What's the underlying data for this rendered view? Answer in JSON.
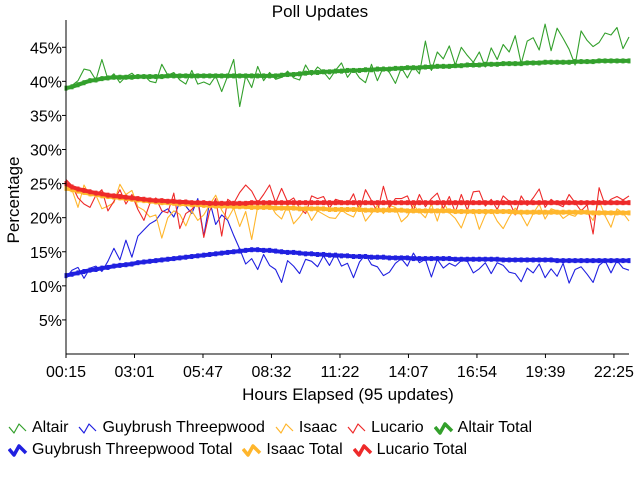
{
  "chart_data": {
    "type": "line",
    "title": "Poll Updates",
    "xlabel": "Hours Elapsed (95 updates)",
    "ylabel": "Percentage",
    "x_tick_labels": [
      "00:15",
      "03:01",
      "05:47",
      "08:32",
      "11:22",
      "14:07",
      "16:54",
      "19:39",
      "22:25"
    ],
    "y_ticks": [
      5,
      10,
      15,
      20,
      25,
      30,
      35,
      40,
      45
    ],
    "y_tick_labels": [
      "5%",
      "10%",
      "15%",
      "20%",
      "25%",
      "30%",
      "35%",
      "40%",
      "45%"
    ],
    "ylim": [
      0,
      49
    ],
    "grid": false,
    "legend_position": "bottom",
    "series": [
      {
        "name": "Altair",
        "color": "#33a02c",
        "style": "thin",
        "values": [
          39.0,
          39.4,
          40.1,
          41.8,
          41.6,
          40.2,
          43.2,
          40.3,
          41.1,
          39.8,
          40.7,
          41.2,
          40.4,
          40.9,
          40.0,
          39.8,
          42.5,
          40.9,
          41.3,
          40.2,
          39.6,
          41.6,
          39.6,
          39.9,
          39.5,
          40.8,
          38.5,
          40.8,
          43.2,
          36.3,
          40.8,
          39.1,
          42.2,
          40.1,
          41.3,
          40.3,
          40.6,
          41.5,
          40.5,
          40.2,
          42.4,
          40.9,
          42.1,
          41.4,
          40.3,
          41.6,
          42.7,
          40.6,
          41.8,
          40.5,
          39.8,
          42.5,
          40.1,
          42.1,
          41.3,
          39.7,
          42.0,
          40.5,
          42.2,
          41.1,
          45.9,
          41.6,
          44.3,
          43.3,
          45.2,
          42.4,
          45.0,
          43.8,
          42.8,
          44.3,
          42.1,
          44.9,
          43.2,
          45.4,
          44.3,
          46.7,
          42.6,
          45.9,
          46.4,
          44.6,
          48.4,
          44.5,
          47.8,
          46.3,
          44.7,
          42.4,
          47.4,
          46.0,
          45.1,
          45.7,
          47.1,
          46.8,
          47.9,
          44.8,
          46.5
        ]
      },
      {
        "name": "Guybrush Threepwood",
        "color": "#2020e0",
        "style": "thin",
        "values": [
          11.2,
          12.3,
          12.7,
          11.1,
          12.6,
          12.9,
          12.1,
          13.6,
          15.5,
          13.8,
          16.7,
          14.2,
          17.3,
          18.2,
          19.1,
          19.6,
          20.8,
          21.3,
          20.1,
          22.3,
          21.7,
          20.6,
          22.8,
          17.3,
          22.4,
          19.0,
          20.4,
          19.6,
          17.4,
          15.4,
          13.2,
          14.0,
          12.4,
          14.6,
          13.0,
          12.4,
          10.5,
          13.7,
          12.9,
          11.8,
          13.9,
          13.6,
          12.8,
          14.4,
          13.0,
          14.7,
          12.9,
          13.3,
          11.2,
          13.5,
          14.6,
          13.1,
          12.8,
          11.5,
          12.0,
          13.3,
          14.0,
          12.9,
          14.8,
          13.4,
          13.9,
          11.3,
          13.9,
          12.6,
          13.3,
          12.9,
          13.7,
          13.6,
          11.9,
          12.5,
          13.4,
          11.8,
          13.4,
          13.0,
          12.0,
          11.8,
          10.6,
          12.6,
          11.9,
          13.2,
          11.2,
          12.5,
          11.4,
          13.3,
          10.4,
          12.4,
          12.8,
          11.7,
          10.5,
          13.0,
          13.7,
          11.9,
          13.7,
          12.6,
          12.3
        ]
      },
      {
        "name": "Isaac",
        "color": "#ffb62c",
        "style": "thin",
        "values": [
          24.9,
          24.1,
          21.5,
          24.8,
          23.2,
          23.3,
          21.3,
          21.7,
          22.2,
          24.9,
          23.4,
          24.0,
          21.6,
          21.1,
          20.1,
          20.4,
          17.0,
          20.0,
          21.0,
          20.5,
          18.8,
          21.0,
          19.6,
          20.4,
          21.9,
          23.3,
          21.1,
          19.8,
          21.4,
          18.7,
          20.9,
          16.8,
          21.6,
          21.5,
          22.0,
          20.6,
          19.8,
          21.8,
          19.1,
          20.1,
          21.4,
          19.6,
          21.0,
          20.5,
          20.0,
          19.9,
          21.1,
          20.5,
          20.1,
          21.9,
          19.5,
          20.6,
          21.8,
          20.6,
          21.8,
          21.5,
          19.4,
          20.2,
          21.8,
          20.9,
          20.0,
          22.0,
          19.5,
          22.3,
          20.7,
          19.9,
          18.5,
          20.8,
          21.2,
          18.3,
          20.4,
          21.2,
          19.5,
          18.4,
          20.1,
          21.4,
          20.4,
          18.8,
          20.6,
          22.0,
          19.8,
          21.3,
          21.0,
          19.9,
          20.5,
          20.2,
          21.2,
          20.8,
          19.6,
          22.5,
          20.3,
          18.6,
          21.3,
          20.7,
          19.5
        ]
      },
      {
        "name": "Lucario",
        "color": "#ee2a2a",
        "style": "thin",
        "values": [
          25.6,
          24.7,
          22.9,
          22.0,
          21.5,
          23.3,
          24.1,
          21.0,
          22.4,
          24.1,
          22.0,
          23.4,
          21.2,
          19.6,
          22.1,
          22.9,
          21.0,
          20.7,
          23.6,
          18.4,
          20.6,
          21.2,
          22.4,
          17.1,
          21.0,
          22.8,
          17.3,
          22.7,
          22.1,
          23.7,
          24.8,
          23.9,
          22.2,
          23.4,
          24.8,
          22.2,
          24.3,
          22.3,
          22.9,
          21.4,
          20.6,
          23.2,
          22.8,
          23.1,
          21.4,
          22.7,
          22.4,
          21.9,
          23.5,
          21.0,
          24.1,
          22.5,
          20.8,
          24.6,
          21.5,
          22.8,
          22.8,
          23.2,
          21.1,
          23.4,
          21.6,
          22.8,
          23.6,
          21.3,
          23.1,
          20.8,
          23.4,
          21.1,
          23.8,
          23.9,
          21.7,
          22.7,
          21.2,
          23.2,
          22.4,
          20.4,
          23.2,
          21.8,
          22.9,
          24.2,
          21.5,
          22.7,
          22.0,
          21.6,
          23.4,
          22.2,
          21.0,
          21.9,
          17.6,
          24.4,
          21.9,
          22.7,
          23.1,
          22.6,
          23.2
        ]
      },
      {
        "name": "Altair Total",
        "color": "#33a02c",
        "style": "thick",
        "values": [
          39.0,
          39.2,
          39.5,
          39.8,
          40.1,
          40.2,
          40.4,
          40.5,
          40.6,
          40.6,
          40.6,
          40.6,
          40.7,
          40.7,
          40.7,
          40.7,
          40.7,
          40.8,
          40.8,
          40.8,
          40.8,
          40.8,
          40.8,
          40.8,
          40.8,
          40.8,
          40.8,
          40.8,
          40.8,
          40.8,
          40.8,
          40.8,
          40.8,
          40.8,
          40.8,
          40.8,
          40.9,
          41.0,
          41.0,
          41.1,
          41.2,
          41.3,
          41.3,
          41.4,
          41.4,
          41.5,
          41.5,
          41.6,
          41.6,
          41.6,
          41.7,
          41.7,
          41.8,
          41.8,
          41.8,
          41.9,
          41.9,
          42.0,
          42.0,
          42.0,
          42.1,
          42.1,
          42.2,
          42.2,
          42.2,
          42.3,
          42.3,
          42.4,
          42.4,
          42.4,
          42.5,
          42.5,
          42.5,
          42.6,
          42.6,
          42.6,
          42.6,
          42.7,
          42.7,
          42.7,
          42.8,
          42.8,
          42.8,
          42.8,
          42.8,
          42.9,
          42.9,
          42.9,
          42.9,
          43.0,
          43.0,
          43.0,
          43.0,
          43.0,
          43.0
        ]
      },
      {
        "name": "Guybrush Threepwood Total",
        "color": "#2020e0",
        "style": "thick",
        "values": [
          11.5,
          11.7,
          11.9,
          12.1,
          12.3,
          12.4,
          12.6,
          12.7,
          12.9,
          13.0,
          13.1,
          13.2,
          13.4,
          13.5,
          13.6,
          13.7,
          13.8,
          13.9,
          14.0,
          14.1,
          14.2,
          14.3,
          14.4,
          14.5,
          14.6,
          14.7,
          14.8,
          14.9,
          15.0,
          15.1,
          15.2,
          15.3,
          15.3,
          15.2,
          15.2,
          15.1,
          15.0,
          14.9,
          14.9,
          14.8,
          14.7,
          14.7,
          14.6,
          14.6,
          14.5,
          14.5,
          14.4,
          14.4,
          14.3,
          14.3,
          14.3,
          14.2,
          14.2,
          14.2,
          14.1,
          14.1,
          14.1,
          14.1,
          14.0,
          14.0,
          14.0,
          14.0,
          14.0,
          14.0,
          14.0,
          13.9,
          13.9,
          13.9,
          13.9,
          13.9,
          13.9,
          13.9,
          13.9,
          13.8,
          13.8,
          13.8,
          13.8,
          13.8,
          13.8,
          13.8,
          13.8,
          13.8,
          13.7,
          13.7,
          13.7,
          13.7,
          13.7,
          13.7,
          13.7,
          13.7,
          13.7,
          13.7,
          13.7,
          13.7,
          13.7
        ]
      },
      {
        "name": "Isaac Total",
        "color": "#ffb62c",
        "style": "thick",
        "values": [
          24.3,
          24.1,
          23.9,
          23.7,
          23.5,
          23.4,
          23.2,
          23.1,
          23.0,
          22.9,
          22.8,
          22.7,
          22.6,
          22.5,
          22.4,
          22.3,
          22.2,
          22.2,
          22.1,
          22.0,
          22.0,
          21.9,
          21.9,
          21.8,
          21.8,
          21.7,
          21.7,
          21.7,
          21.6,
          21.6,
          21.6,
          21.5,
          21.5,
          21.5,
          21.5,
          21.4,
          21.4,
          21.4,
          21.4,
          21.3,
          21.3,
          21.3,
          21.3,
          21.3,
          21.2,
          21.2,
          21.2,
          21.2,
          21.2,
          21.2,
          21.1,
          21.1,
          21.1,
          21.1,
          21.1,
          21.1,
          21.1,
          21.0,
          21.0,
          21.0,
          21.0,
          21.0,
          21.0,
          21.0,
          21.0,
          20.9,
          20.9,
          20.9,
          20.9,
          20.9,
          20.9,
          20.9,
          20.9,
          20.9,
          20.9,
          20.8,
          20.8,
          20.8,
          20.8,
          20.8,
          20.8,
          20.8,
          20.8,
          20.8,
          20.8,
          20.8,
          20.8,
          20.8,
          20.7,
          20.7,
          20.7,
          20.7,
          20.7,
          20.7,
          20.7
        ]
      },
      {
        "name": "Lucario Total",
        "color": "#ee2a2a",
        "style": "thick",
        "values": [
          25.0,
          24.5,
          24.2,
          24.0,
          23.8,
          23.6,
          23.5,
          23.3,
          23.2,
          23.1,
          23.0,
          22.9,
          22.8,
          22.7,
          22.6,
          22.5,
          22.5,
          22.4,
          22.4,
          22.3,
          22.3,
          22.2,
          22.2,
          22.2,
          22.1,
          22.1,
          22.1,
          22.1,
          22.1,
          22.1,
          22.1,
          22.2,
          22.2,
          22.2,
          22.2,
          22.2,
          22.2,
          22.2,
          22.2,
          22.2,
          22.2,
          22.2,
          22.2,
          22.2,
          22.2,
          22.2,
          22.2,
          22.2,
          22.2,
          22.2,
          22.2,
          22.2,
          22.2,
          22.2,
          22.2,
          22.2,
          22.2,
          22.2,
          22.2,
          22.2,
          22.2,
          22.2,
          22.2,
          22.2,
          22.2,
          22.2,
          22.2,
          22.2,
          22.2,
          22.2,
          22.2,
          22.2,
          22.2,
          22.2,
          22.2,
          22.2,
          22.2,
          22.2,
          22.2,
          22.2,
          22.2,
          22.2,
          22.2,
          22.2,
          22.2,
          22.2,
          22.2,
          22.2,
          22.2,
          22.2,
          22.2,
          22.2,
          22.2,
          22.2,
          22.2
        ]
      }
    ]
  }
}
